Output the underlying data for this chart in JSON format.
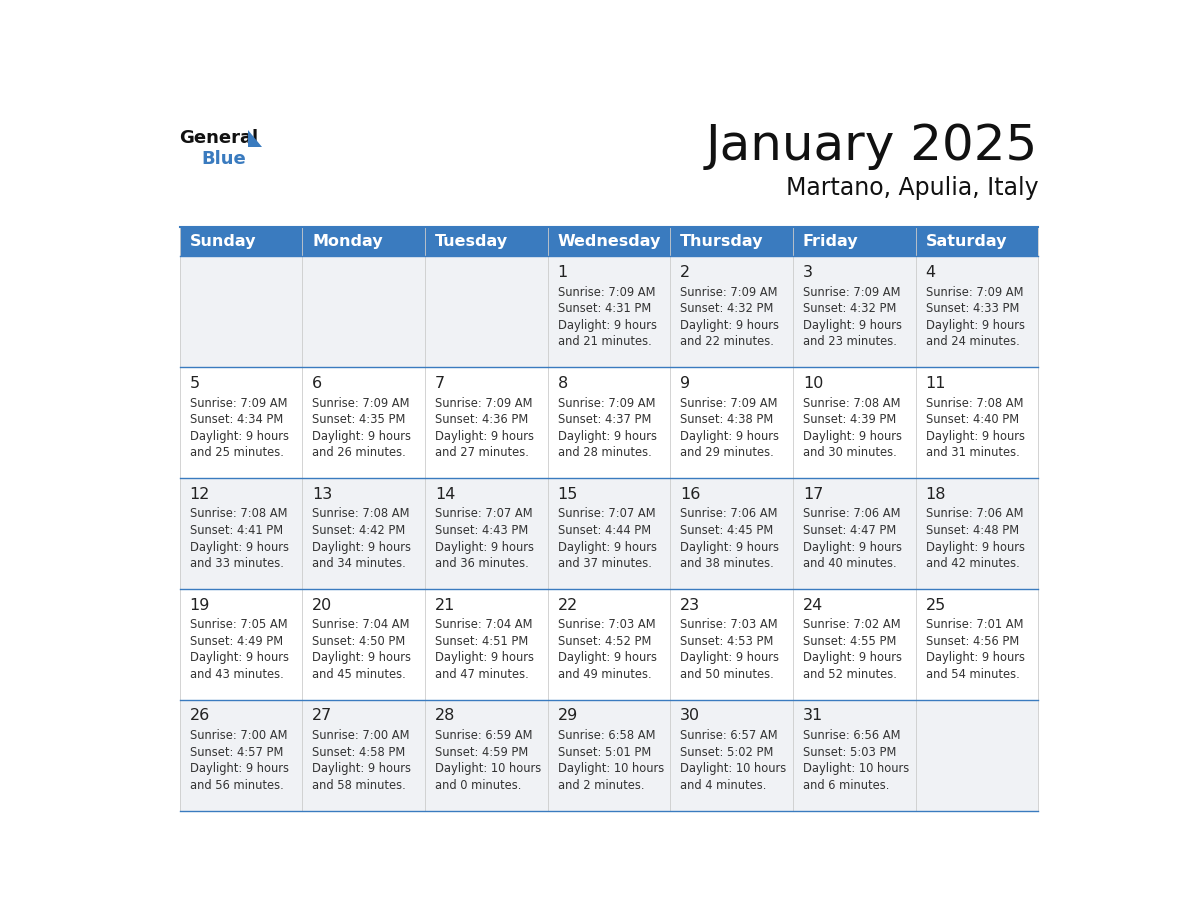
{
  "title": "January 2025",
  "subtitle": "Martano, Apulia, Italy",
  "header_color": "#3a7bbf",
  "header_text_color": "#ffffff",
  "background_color": "#ffffff",
  "alt_row_color": "#f0f2f5",
  "cell_border_color_h": "#3a7bbf",
  "cell_border_color_v": "#cccccc",
  "text_color": "#333333",
  "day_number_color": "#222222",
  "day_names": [
    "Sunday",
    "Monday",
    "Tuesday",
    "Wednesday",
    "Thursday",
    "Friday",
    "Saturday"
  ],
  "days": [
    {
      "day": 1,
      "col": 3,
      "row": 0,
      "sunrise": "7:09 AM",
      "sunset": "4:31 PM",
      "daylight": "9 hours and 21 minutes."
    },
    {
      "day": 2,
      "col": 4,
      "row": 0,
      "sunrise": "7:09 AM",
      "sunset": "4:32 PM",
      "daylight": "9 hours and 22 minutes."
    },
    {
      "day": 3,
      "col": 5,
      "row": 0,
      "sunrise": "7:09 AM",
      "sunset": "4:32 PM",
      "daylight": "9 hours and 23 minutes."
    },
    {
      "day": 4,
      "col": 6,
      "row": 0,
      "sunrise": "7:09 AM",
      "sunset": "4:33 PM",
      "daylight": "9 hours and 24 minutes."
    },
    {
      "day": 5,
      "col": 0,
      "row": 1,
      "sunrise": "7:09 AM",
      "sunset": "4:34 PM",
      "daylight": "9 hours and 25 minutes."
    },
    {
      "day": 6,
      "col": 1,
      "row": 1,
      "sunrise": "7:09 AM",
      "sunset": "4:35 PM",
      "daylight": "9 hours and 26 minutes."
    },
    {
      "day": 7,
      "col": 2,
      "row": 1,
      "sunrise": "7:09 AM",
      "sunset": "4:36 PM",
      "daylight": "9 hours and 27 minutes."
    },
    {
      "day": 8,
      "col": 3,
      "row": 1,
      "sunrise": "7:09 AM",
      "sunset": "4:37 PM",
      "daylight": "9 hours and 28 minutes."
    },
    {
      "day": 9,
      "col": 4,
      "row": 1,
      "sunrise": "7:09 AM",
      "sunset": "4:38 PM",
      "daylight": "9 hours and 29 minutes."
    },
    {
      "day": 10,
      "col": 5,
      "row": 1,
      "sunrise": "7:08 AM",
      "sunset": "4:39 PM",
      "daylight": "9 hours and 30 minutes."
    },
    {
      "day": 11,
      "col": 6,
      "row": 1,
      "sunrise": "7:08 AM",
      "sunset": "4:40 PM",
      "daylight": "9 hours and 31 minutes."
    },
    {
      "day": 12,
      "col": 0,
      "row": 2,
      "sunrise": "7:08 AM",
      "sunset": "4:41 PM",
      "daylight": "9 hours and 33 minutes."
    },
    {
      "day": 13,
      "col": 1,
      "row": 2,
      "sunrise": "7:08 AM",
      "sunset": "4:42 PM",
      "daylight": "9 hours and 34 minutes."
    },
    {
      "day": 14,
      "col": 2,
      "row": 2,
      "sunrise": "7:07 AM",
      "sunset": "4:43 PM",
      "daylight": "9 hours and 36 minutes."
    },
    {
      "day": 15,
      "col": 3,
      "row": 2,
      "sunrise": "7:07 AM",
      "sunset": "4:44 PM",
      "daylight": "9 hours and 37 minutes."
    },
    {
      "day": 16,
      "col": 4,
      "row": 2,
      "sunrise": "7:06 AM",
      "sunset": "4:45 PM",
      "daylight": "9 hours and 38 minutes."
    },
    {
      "day": 17,
      "col": 5,
      "row": 2,
      "sunrise": "7:06 AM",
      "sunset": "4:47 PM",
      "daylight": "9 hours and 40 minutes."
    },
    {
      "day": 18,
      "col": 6,
      "row": 2,
      "sunrise": "7:06 AM",
      "sunset": "4:48 PM",
      "daylight": "9 hours and 42 minutes."
    },
    {
      "day": 19,
      "col": 0,
      "row": 3,
      "sunrise": "7:05 AM",
      "sunset": "4:49 PM",
      "daylight": "9 hours and 43 minutes."
    },
    {
      "day": 20,
      "col": 1,
      "row": 3,
      "sunrise": "7:04 AM",
      "sunset": "4:50 PM",
      "daylight": "9 hours and 45 minutes."
    },
    {
      "day": 21,
      "col": 2,
      "row": 3,
      "sunrise": "7:04 AM",
      "sunset": "4:51 PM",
      "daylight": "9 hours and 47 minutes."
    },
    {
      "day": 22,
      "col": 3,
      "row": 3,
      "sunrise": "7:03 AM",
      "sunset": "4:52 PM",
      "daylight": "9 hours and 49 minutes."
    },
    {
      "day": 23,
      "col": 4,
      "row": 3,
      "sunrise": "7:03 AM",
      "sunset": "4:53 PM",
      "daylight": "9 hours and 50 minutes."
    },
    {
      "day": 24,
      "col": 5,
      "row": 3,
      "sunrise": "7:02 AM",
      "sunset": "4:55 PM",
      "daylight": "9 hours and 52 minutes."
    },
    {
      "day": 25,
      "col": 6,
      "row": 3,
      "sunrise": "7:01 AM",
      "sunset": "4:56 PM",
      "daylight": "9 hours and 54 minutes."
    },
    {
      "day": 26,
      "col": 0,
      "row": 4,
      "sunrise": "7:00 AM",
      "sunset": "4:57 PM",
      "daylight": "9 hours and 56 minutes."
    },
    {
      "day": 27,
      "col": 1,
      "row": 4,
      "sunrise": "7:00 AM",
      "sunset": "4:58 PM",
      "daylight": "9 hours and 58 minutes."
    },
    {
      "day": 28,
      "col": 2,
      "row": 4,
      "sunrise": "6:59 AM",
      "sunset": "4:59 PM",
      "daylight": "10 hours and 0 minutes."
    },
    {
      "day": 29,
      "col": 3,
      "row": 4,
      "sunrise": "6:58 AM",
      "sunset": "5:01 PM",
      "daylight": "10 hours and 2 minutes."
    },
    {
      "day": 30,
      "col": 4,
      "row": 4,
      "sunrise": "6:57 AM",
      "sunset": "5:02 PM",
      "daylight": "10 hours and 4 minutes."
    },
    {
      "day": 31,
      "col": 5,
      "row": 4,
      "sunrise": "6:56 AM",
      "sunset": "5:03 PM",
      "daylight": "10 hours and 6 minutes."
    }
  ],
  "num_rows": 5,
  "num_cols": 7,
  "logo_general_color": "#111111",
  "logo_blue_color": "#3a7bbf",
  "logo_triangle_color": "#3a7bbf"
}
